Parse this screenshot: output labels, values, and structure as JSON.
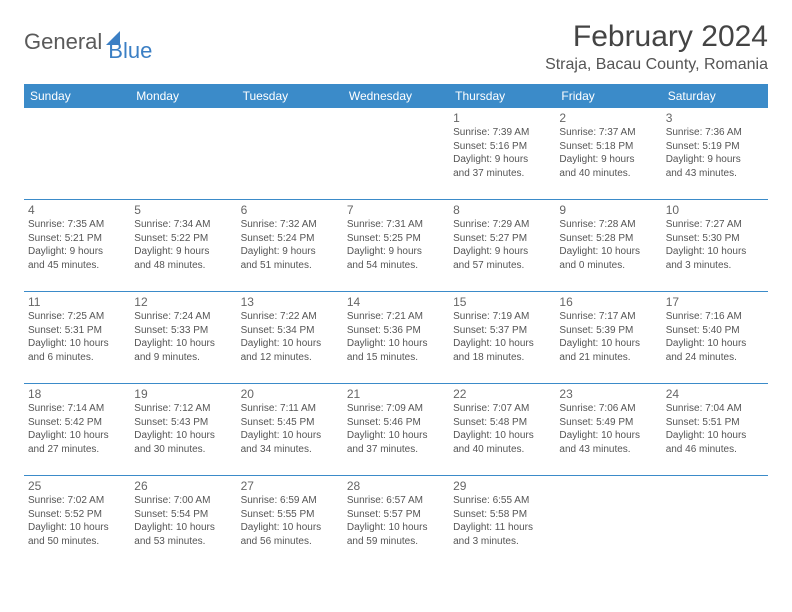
{
  "logo": {
    "part1": "General",
    "part2": "Blue"
  },
  "title": "February 2024",
  "location": "Straja, Bacau County, Romania",
  "colors": {
    "header_bg": "#3b8bc9",
    "header_text": "#ffffff",
    "border": "#3b8bc9",
    "logo_gray": "#5a5a5a",
    "logo_blue": "#3b7fc4",
    "background": "#ffffff",
    "body_text": "#555555"
  },
  "typography": {
    "title_fontsize": 30,
    "location_fontsize": 16,
    "dayheader_fontsize": 12,
    "daynum_fontsize": 12,
    "detail_fontsize": 10
  },
  "day_headers": [
    "Sunday",
    "Monday",
    "Tuesday",
    "Wednesday",
    "Thursday",
    "Friday",
    "Saturday"
  ],
  "weeks": [
    [
      null,
      null,
      null,
      null,
      {
        "n": "1",
        "sr": "Sunrise: 7:39 AM",
        "ss": "Sunset: 5:16 PM",
        "d1": "Daylight: 9 hours",
        "d2": "and 37 minutes."
      },
      {
        "n": "2",
        "sr": "Sunrise: 7:37 AM",
        "ss": "Sunset: 5:18 PM",
        "d1": "Daylight: 9 hours",
        "d2": "and 40 minutes."
      },
      {
        "n": "3",
        "sr": "Sunrise: 7:36 AM",
        "ss": "Sunset: 5:19 PM",
        "d1": "Daylight: 9 hours",
        "d2": "and 43 minutes."
      }
    ],
    [
      {
        "n": "4",
        "sr": "Sunrise: 7:35 AM",
        "ss": "Sunset: 5:21 PM",
        "d1": "Daylight: 9 hours",
        "d2": "and 45 minutes."
      },
      {
        "n": "5",
        "sr": "Sunrise: 7:34 AM",
        "ss": "Sunset: 5:22 PM",
        "d1": "Daylight: 9 hours",
        "d2": "and 48 minutes."
      },
      {
        "n": "6",
        "sr": "Sunrise: 7:32 AM",
        "ss": "Sunset: 5:24 PM",
        "d1": "Daylight: 9 hours",
        "d2": "and 51 minutes."
      },
      {
        "n": "7",
        "sr": "Sunrise: 7:31 AM",
        "ss": "Sunset: 5:25 PM",
        "d1": "Daylight: 9 hours",
        "d2": "and 54 minutes."
      },
      {
        "n": "8",
        "sr": "Sunrise: 7:29 AM",
        "ss": "Sunset: 5:27 PM",
        "d1": "Daylight: 9 hours",
        "d2": "and 57 minutes."
      },
      {
        "n": "9",
        "sr": "Sunrise: 7:28 AM",
        "ss": "Sunset: 5:28 PM",
        "d1": "Daylight: 10 hours",
        "d2": "and 0 minutes."
      },
      {
        "n": "10",
        "sr": "Sunrise: 7:27 AM",
        "ss": "Sunset: 5:30 PM",
        "d1": "Daylight: 10 hours",
        "d2": "and 3 minutes."
      }
    ],
    [
      {
        "n": "11",
        "sr": "Sunrise: 7:25 AM",
        "ss": "Sunset: 5:31 PM",
        "d1": "Daylight: 10 hours",
        "d2": "and 6 minutes."
      },
      {
        "n": "12",
        "sr": "Sunrise: 7:24 AM",
        "ss": "Sunset: 5:33 PM",
        "d1": "Daylight: 10 hours",
        "d2": "and 9 minutes."
      },
      {
        "n": "13",
        "sr": "Sunrise: 7:22 AM",
        "ss": "Sunset: 5:34 PM",
        "d1": "Daylight: 10 hours",
        "d2": "and 12 minutes."
      },
      {
        "n": "14",
        "sr": "Sunrise: 7:21 AM",
        "ss": "Sunset: 5:36 PM",
        "d1": "Daylight: 10 hours",
        "d2": "and 15 minutes."
      },
      {
        "n": "15",
        "sr": "Sunrise: 7:19 AM",
        "ss": "Sunset: 5:37 PM",
        "d1": "Daylight: 10 hours",
        "d2": "and 18 minutes."
      },
      {
        "n": "16",
        "sr": "Sunrise: 7:17 AM",
        "ss": "Sunset: 5:39 PM",
        "d1": "Daylight: 10 hours",
        "d2": "and 21 minutes."
      },
      {
        "n": "17",
        "sr": "Sunrise: 7:16 AM",
        "ss": "Sunset: 5:40 PM",
        "d1": "Daylight: 10 hours",
        "d2": "and 24 minutes."
      }
    ],
    [
      {
        "n": "18",
        "sr": "Sunrise: 7:14 AM",
        "ss": "Sunset: 5:42 PM",
        "d1": "Daylight: 10 hours",
        "d2": "and 27 minutes."
      },
      {
        "n": "19",
        "sr": "Sunrise: 7:12 AM",
        "ss": "Sunset: 5:43 PM",
        "d1": "Daylight: 10 hours",
        "d2": "and 30 minutes."
      },
      {
        "n": "20",
        "sr": "Sunrise: 7:11 AM",
        "ss": "Sunset: 5:45 PM",
        "d1": "Daylight: 10 hours",
        "d2": "and 34 minutes."
      },
      {
        "n": "21",
        "sr": "Sunrise: 7:09 AM",
        "ss": "Sunset: 5:46 PM",
        "d1": "Daylight: 10 hours",
        "d2": "and 37 minutes."
      },
      {
        "n": "22",
        "sr": "Sunrise: 7:07 AM",
        "ss": "Sunset: 5:48 PM",
        "d1": "Daylight: 10 hours",
        "d2": "and 40 minutes."
      },
      {
        "n": "23",
        "sr": "Sunrise: 7:06 AM",
        "ss": "Sunset: 5:49 PM",
        "d1": "Daylight: 10 hours",
        "d2": "and 43 minutes."
      },
      {
        "n": "24",
        "sr": "Sunrise: 7:04 AM",
        "ss": "Sunset: 5:51 PM",
        "d1": "Daylight: 10 hours",
        "d2": "and 46 minutes."
      }
    ],
    [
      {
        "n": "25",
        "sr": "Sunrise: 7:02 AM",
        "ss": "Sunset: 5:52 PM",
        "d1": "Daylight: 10 hours",
        "d2": "and 50 minutes."
      },
      {
        "n": "26",
        "sr": "Sunrise: 7:00 AM",
        "ss": "Sunset: 5:54 PM",
        "d1": "Daylight: 10 hours",
        "d2": "and 53 minutes."
      },
      {
        "n": "27",
        "sr": "Sunrise: 6:59 AM",
        "ss": "Sunset: 5:55 PM",
        "d1": "Daylight: 10 hours",
        "d2": "and 56 minutes."
      },
      {
        "n": "28",
        "sr": "Sunrise: 6:57 AM",
        "ss": "Sunset: 5:57 PM",
        "d1": "Daylight: 10 hours",
        "d2": "and 59 minutes."
      },
      {
        "n": "29",
        "sr": "Sunrise: 6:55 AM",
        "ss": "Sunset: 5:58 PM",
        "d1": "Daylight: 11 hours",
        "d2": "and 3 minutes."
      },
      null,
      null
    ]
  ]
}
